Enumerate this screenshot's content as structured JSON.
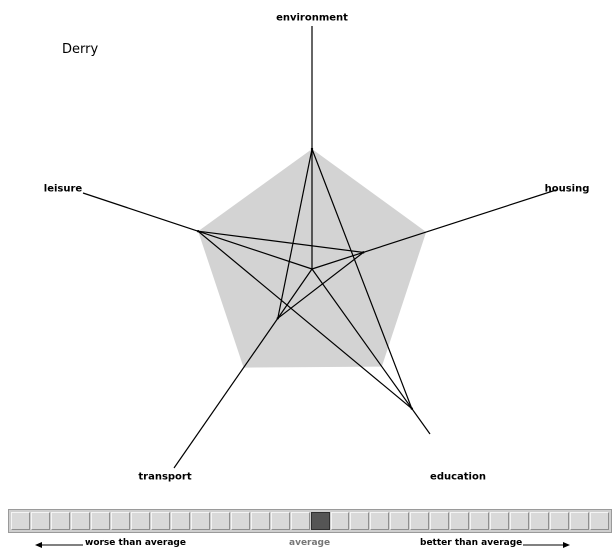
{
  "chart_data": {
    "type": "radar",
    "title": "Derry",
    "axes": [
      "environment",
      "housing",
      "education",
      "transport",
      "leisure"
    ],
    "series": [
      {
        "values": [
          1.0,
          0.45,
          1.43,
          0.5,
          1.0
        ]
      }
    ],
    "average": [
      1.0,
      1.0,
      1.0,
      1.0,
      1.0
    ],
    "colors": {
      "average_fill": "#d3d3d3",
      "series_line": "#000000"
    }
  },
  "scale": {
    "cell_count": 30,
    "active_index": 15,
    "worse_label": "worse than average",
    "average_label": "average",
    "better_label": "better than average"
  }
}
